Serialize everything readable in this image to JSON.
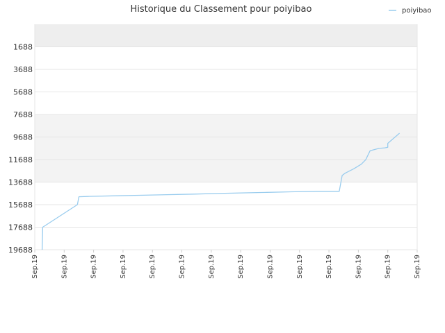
{
  "chart_data": {
    "type": "line",
    "title": "Historique du Classement pour poiyibao",
    "xlabel": "",
    "ylabel": "",
    "y_inverted": true,
    "ylim": [
      19688,
      -312
    ],
    "y_ticks": [
      1688,
      3688,
      5688,
      7688,
      9688,
      11688,
      13688,
      15688,
      17688,
      19688
    ],
    "x_ticks": [
      "Sep.19",
      "Sep.19",
      "Sep.19",
      "Sep.19",
      "Sep.19",
      "Sep.19",
      "Sep.19",
      "Sep.19",
      "Sep.19",
      "Sep.19",
      "Sep.19",
      "Sep.19",
      "Sep.19",
      "Sep.19"
    ],
    "legend": {
      "position": "top-right",
      "entries": [
        "poiyibao"
      ]
    },
    "grid": true,
    "colors": {
      "line": "#99ccee",
      "band_light": "#ffffff",
      "band_dark": "#f3f3f3",
      "top_band": "#eeeeee",
      "grid": "#e5e5e5"
    },
    "series": [
      {
        "name": "poiyibao",
        "x": [
          0.25,
          0.27,
          1.45,
          1.5,
          1.9,
          2.8,
          3.7,
          4.5,
          5.4,
          6.2,
          7.0,
          7.9,
          8.7,
          9.6,
          10.35,
          10.45,
          10.55,
          10.85,
          11.1,
          11.25,
          11.4,
          11.7,
          11.9,
          12.0,
          12.0,
          12.4
        ],
        "y": [
          19688,
          17688,
          15688,
          14988,
          14950,
          14900,
          14850,
          14800,
          14750,
          14700,
          14650,
          14600,
          14550,
          14500,
          14500,
          13100,
          12900,
          12500,
          12100,
          11700,
          10900,
          10700,
          10650,
          10600,
          10250,
          9350
        ]
      }
    ]
  }
}
